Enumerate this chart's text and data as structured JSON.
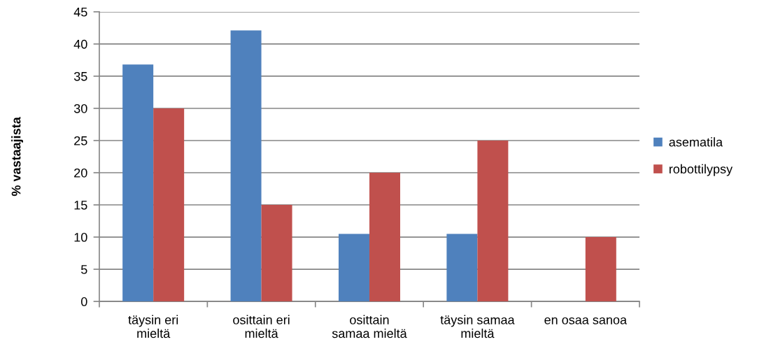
{
  "chart_data": {
    "type": "bar",
    "ylabel": "% vastaajista",
    "categories": [
      "täysin eri\nmieltä",
      "osittain eri\nmieltä",
      "osittain\nsamaa mieltä",
      "täysin samaa\nmieltä",
      "en osaa sanoa"
    ],
    "series": [
      {
        "name": "asematila",
        "color": "#4f81bd",
        "values": [
          36.8,
          42.1,
          10.5,
          10.5,
          0
        ]
      },
      {
        "name": "robottilypsy",
        "color": "#c0504d",
        "values": [
          30,
          15,
          20,
          25,
          10
        ]
      }
    ],
    "ylim": [
      0,
      45
    ],
    "yticks": [
      0,
      5,
      10,
      15,
      20,
      25,
      30,
      35,
      40,
      45
    ],
    "grid": "y",
    "legend": "right"
  }
}
